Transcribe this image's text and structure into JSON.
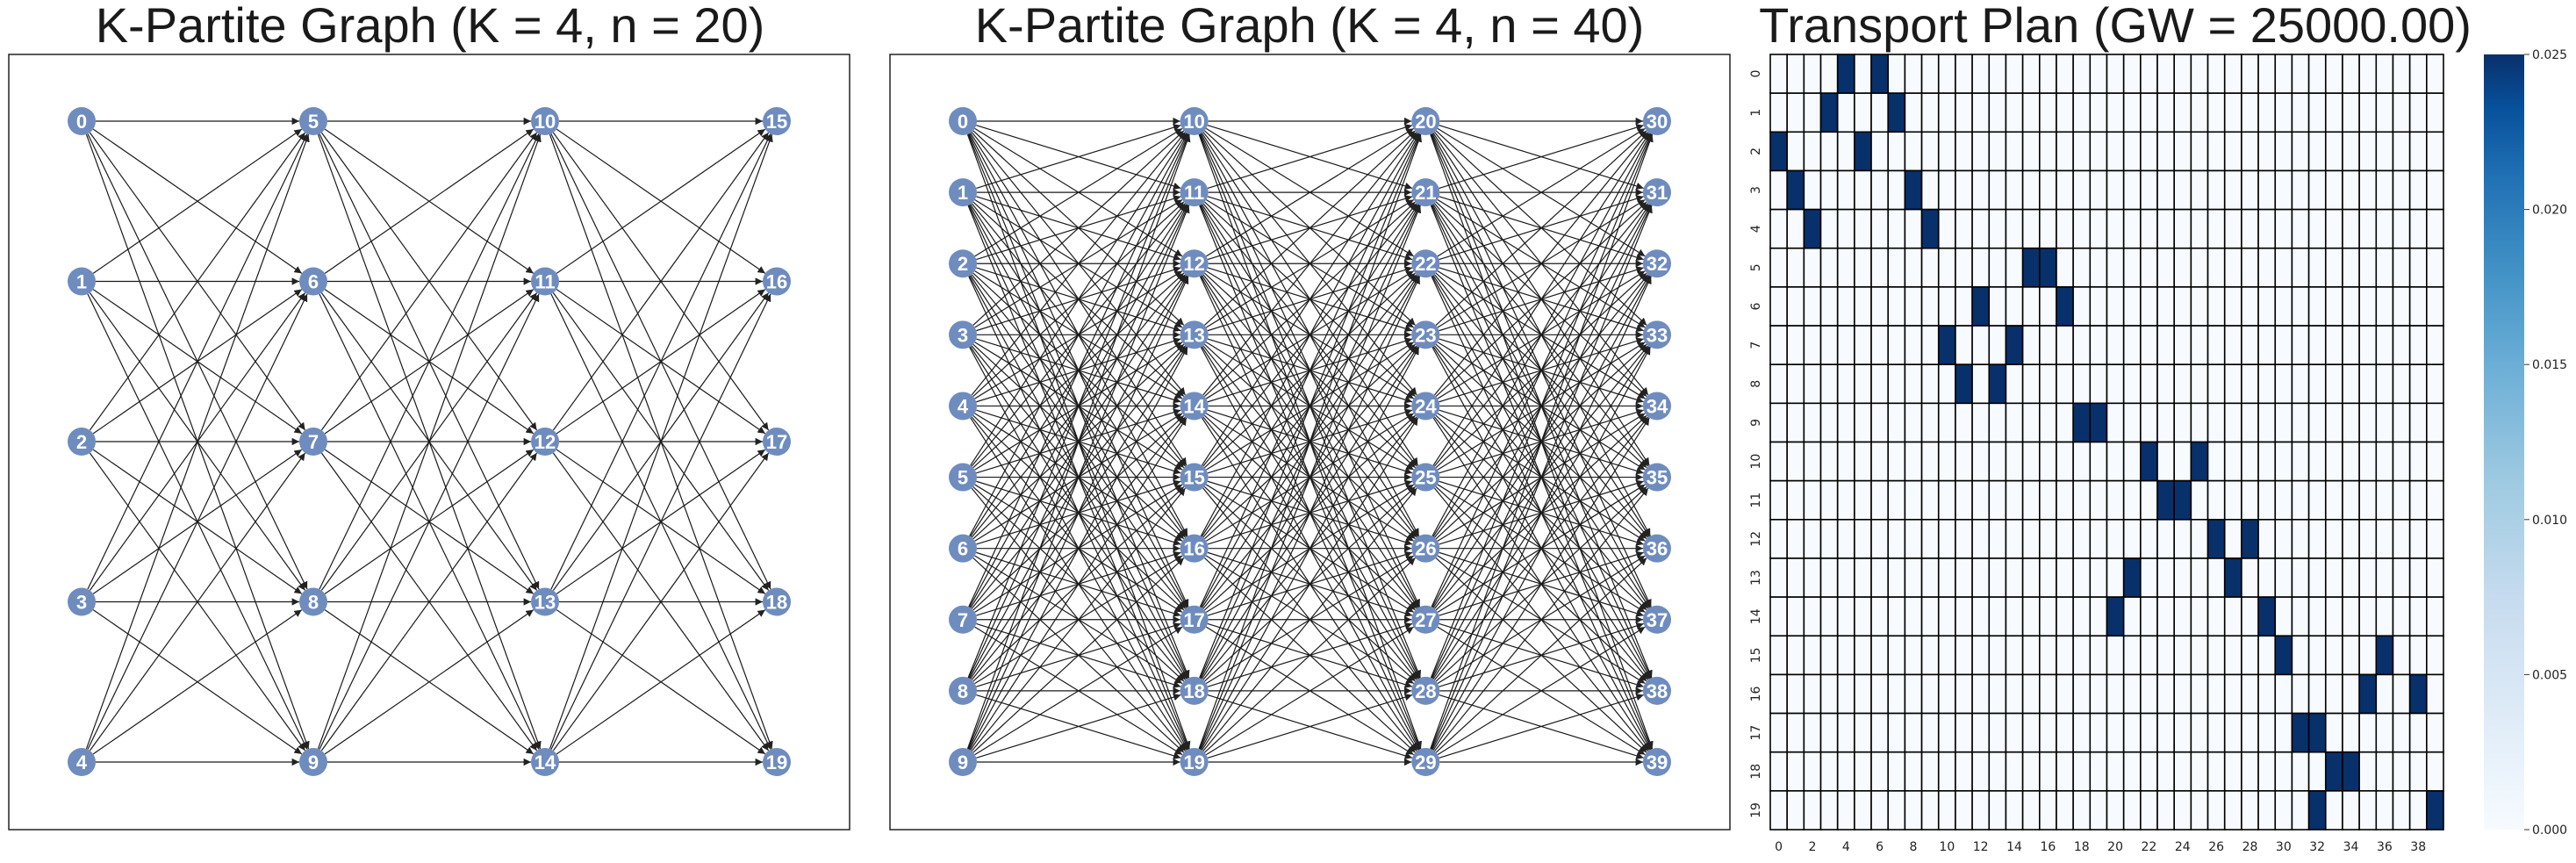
{
  "chart_data": [
    {
      "type": "network",
      "title": "K-Partite Graph (K = 4, n = 20)",
      "K": 4,
      "n": 20,
      "partitions": [
        [
          0,
          1,
          2,
          3,
          4
        ],
        [
          5,
          6,
          7,
          8,
          9
        ],
        [
          10,
          11,
          12,
          13,
          14
        ],
        [
          15,
          16,
          17,
          18,
          19
        ]
      ],
      "edges": "complete bipartite between consecutive partitions",
      "node_color": "#6f8cbf"
    },
    {
      "type": "network",
      "title": "K-Partite Graph (K = 4, n = 40)",
      "K": 4,
      "n": 40,
      "partitions": [
        [
          0,
          1,
          2,
          3,
          4,
          5,
          6,
          7,
          8,
          9
        ],
        [
          10,
          11,
          12,
          13,
          14,
          15,
          16,
          17,
          18,
          19
        ],
        [
          20,
          21,
          22,
          23,
          24,
          25,
          26,
          27,
          28,
          29
        ],
        [
          30,
          31,
          32,
          33,
          34,
          35,
          36,
          37,
          38,
          39
        ]
      ],
      "edges": "complete bipartite between consecutive partitions",
      "node_color": "#6f8cbf"
    },
    {
      "type": "heatmap",
      "title": "Transport Plan (GW = 25000.00)",
      "rows": 20,
      "cols": 40,
      "yticks": [
        "0",
        "1",
        "2",
        "3",
        "4",
        "5",
        "6",
        "7",
        "8",
        "9",
        "10",
        "11",
        "12",
        "13",
        "14",
        "15",
        "16",
        "17",
        "18",
        "19"
      ],
      "xticks": [
        "0",
        "2",
        "4",
        "6",
        "8",
        "10",
        "12",
        "14",
        "16",
        "18",
        "20",
        "22",
        "24",
        "26",
        "28",
        "30",
        "32",
        "34",
        "36",
        "38"
      ],
      "cell_value": 0.025,
      "nonzero_cells": [
        [
          0,
          4
        ],
        [
          0,
          6
        ],
        [
          1,
          3
        ],
        [
          1,
          7
        ],
        [
          2,
          0
        ],
        [
          2,
          5
        ],
        [
          3,
          1
        ],
        [
          3,
          8
        ],
        [
          4,
          2
        ],
        [
          4,
          9
        ],
        [
          5,
          15
        ],
        [
          5,
          16
        ],
        [
          6,
          12
        ],
        [
          6,
          17
        ],
        [
          7,
          10
        ],
        [
          7,
          14
        ],
        [
          8,
          11
        ],
        [
          8,
          13
        ],
        [
          9,
          18
        ],
        [
          9,
          19
        ],
        [
          10,
          22
        ],
        [
          10,
          25
        ],
        [
          11,
          23
        ],
        [
          11,
          24
        ],
        [
          12,
          26
        ],
        [
          12,
          28
        ],
        [
          13,
          21
        ],
        [
          13,
          27
        ],
        [
          14,
          20
        ],
        [
          14,
          29
        ],
        [
          15,
          30
        ],
        [
          15,
          36
        ],
        [
          16,
          35
        ],
        [
          16,
          38
        ],
        [
          17,
          31
        ],
        [
          17,
          32
        ],
        [
          18,
          33
        ],
        [
          18,
          34
        ],
        [
          19,
          32
        ],
        [
          19,
          39
        ]
      ],
      "colorbar": {
        "colormap": "Blues",
        "range": [
          0.0,
          0.025
        ],
        "ticks": [
          "0.000",
          "0.005",
          "0.010",
          "0.015",
          "0.020",
          "0.025"
        ]
      }
    }
  ]
}
